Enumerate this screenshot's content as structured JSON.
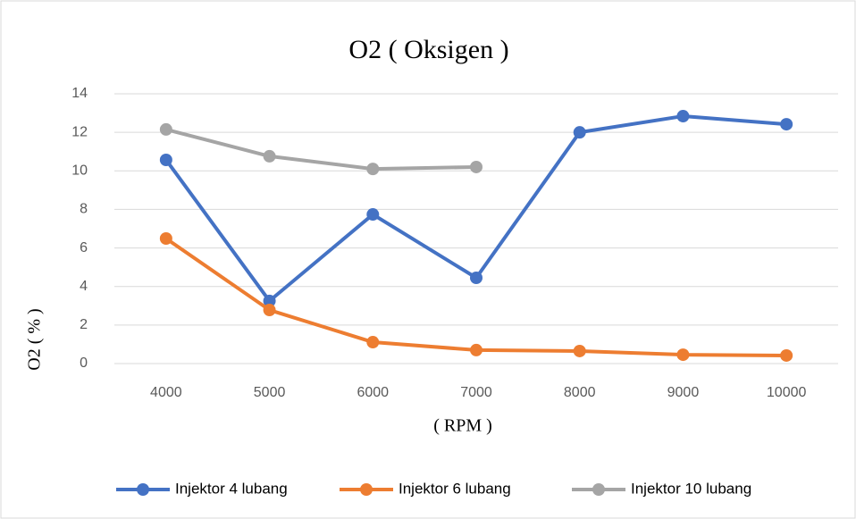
{
  "chart_data": {
    "type": "line",
    "title": "O2 ( Oksigen )",
    "x_label": "( RPM )",
    "y_label": "O2 ( % )",
    "categories": [
      "4000",
      "5000",
      "6000",
      "7000",
      "8000",
      "9000",
      "10000"
    ],
    "series": [
      {
        "name": "Injektor 4 lubang",
        "color": "#4472c4",
        "values": [
          10.57,
          3.25,
          7.74,
          4.45,
          12.0,
          12.84,
          12.42
        ]
      },
      {
        "name": "Injektor 6 lubang",
        "color": "#ed7d31",
        "values": [
          6.49,
          2.78,
          1.11,
          0.7,
          0.65,
          0.46,
          0.42
        ]
      },
      {
        "name": "Injektor 10 lubang",
        "color": "#a5a5a5",
        "values": [
          12.15,
          10.76,
          10.1,
          10.2,
          null,
          null,
          null
        ]
      }
    ],
    "ylim": [
      0,
      14
    ],
    "yticks": [
      0,
      2,
      4,
      6,
      8,
      10,
      12,
      14
    ],
    "grid": true,
    "legend": "bottom"
  }
}
